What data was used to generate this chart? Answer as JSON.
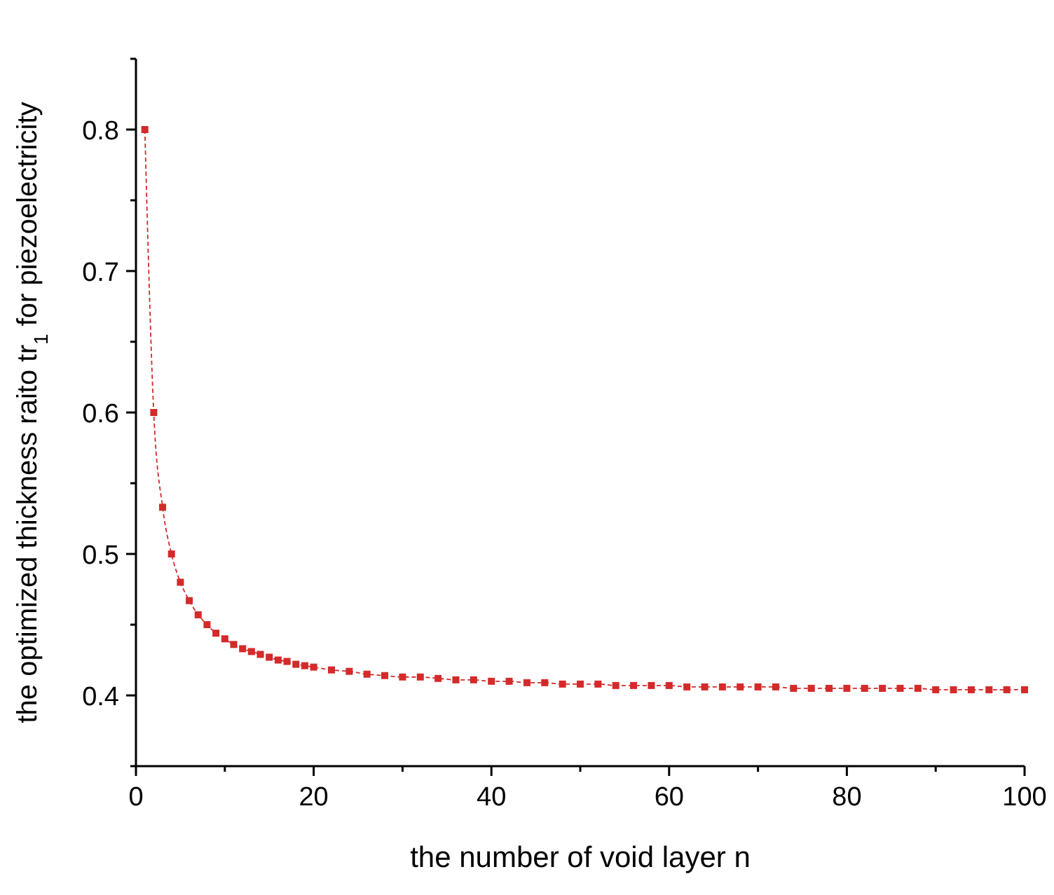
{
  "chart_data": {
    "type": "line",
    "xlabel": "the number of void layer n",
    "ylabel": "the optimized thickness raito tr$_{1}$ for piezoelectricity",
    "x": [
      1,
      2,
      3,
      4,
      5,
      6,
      7,
      8,
      9,
      10,
      11,
      12,
      13,
      14,
      15,
      16,
      17,
      18,
      19,
      20,
      22,
      24,
      26,
      28,
      30,
      32,
      34,
      36,
      38,
      40,
      42,
      44,
      46,
      48,
      50,
      52,
      54,
      56,
      58,
      60,
      62,
      64,
      66,
      68,
      70,
      72,
      74,
      76,
      78,
      80,
      82,
      84,
      86,
      88,
      90,
      92,
      94,
      96,
      98,
      100
    ],
    "series": [
      {
        "color": "#d42a2a",
        "marker": "square",
        "line_style": "dashed",
        "values": [
          0.8,
          0.6,
          0.533,
          0.5,
          0.48,
          0.467,
          0.457,
          0.45,
          0.444,
          0.44,
          0.436,
          0.433,
          0.431,
          0.429,
          0.427,
          0.425,
          0.424,
          0.422,
          0.421,
          0.42,
          0.418,
          0.417,
          0.415,
          0.414,
          0.413,
          0.413,
          0.412,
          0.411,
          0.411,
          0.41,
          0.41,
          0.409,
          0.409,
          0.408,
          0.408,
          0.408,
          0.407,
          0.407,
          0.407,
          0.407,
          0.406,
          0.406,
          0.406,
          0.406,
          0.406,
          0.406,
          0.405,
          0.405,
          0.405,
          0.405,
          0.405,
          0.405,
          0.405,
          0.405,
          0.404,
          0.404,
          0.404,
          0.404,
          0.404,
          0.404
        ]
      }
    ],
    "xlim": [
      0,
      100
    ],
    "xticks": [
      0,
      {
        "value": 10,
        "label": null
      },
      20,
      {
        "value": 30,
        "label": null
      },
      40,
      {
        "value": 50,
        "label": null
      },
      60,
      {
        "value": 70,
        "label": null
      },
      80,
      {
        "value": 90,
        "label": null
      },
      100
    ],
    "ylim": [
      0.35,
      0.85
    ],
    "yticks": [
      {
        "value": 0.35,
        "label": null
      },
      0.4,
      {
        "value": 0.45,
        "label": null
      },
      0.5,
      {
        "value": 0.55,
        "label": null
      },
      0.6,
      {
        "value": 0.65,
        "label": null
      },
      0.7,
      {
        "value": 0.75,
        "label": null
      },
      0.8,
      {
        "value": 0.85,
        "label": null
      }
    ],
    "grid": false
  }
}
